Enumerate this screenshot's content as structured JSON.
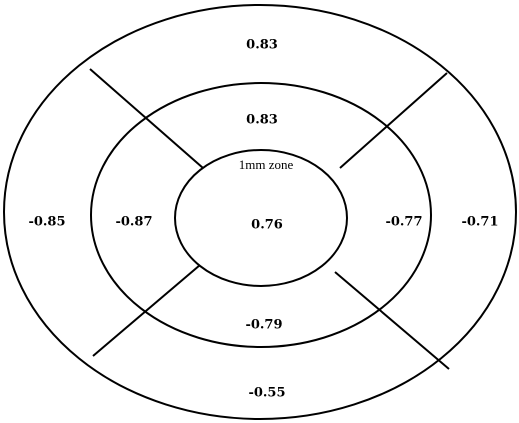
{
  "center_zone": {
    "label": "1mm zone",
    "value": "0.76"
  },
  "inner_ring": {
    "superior": "0.83",
    "temporal_left": "-0.87",
    "nasal_right": "-0.77",
    "inferior": "-0.79"
  },
  "outer_ring": {
    "superior": "0.83",
    "temporal_left": "-0.85",
    "nasal_right": "-0.71",
    "inferior": "-0.55"
  }
}
